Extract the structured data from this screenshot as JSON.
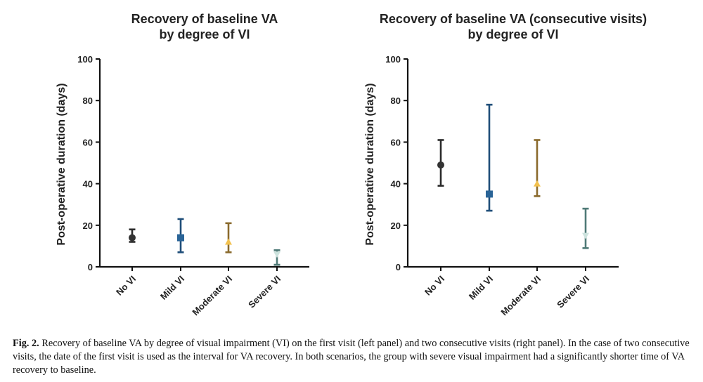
{
  "chart_data": [
    {
      "type": "errorbar",
      "title": [
        "Recovery of baseline VA",
        "by degree of VI"
      ],
      "xlabel": "",
      "ylabel": "Post-operative duration  (days)",
      "ylim": [
        0,
        100
      ],
      "yticks": [
        0,
        20,
        40,
        60,
        80,
        100
      ],
      "grid": false,
      "categories": [
        "No VI",
        "Mild VI",
        "Moderate VI",
        "Severe VI"
      ],
      "series": [
        {
          "name": "No VI",
          "marker": "circle",
          "color": "#2b2b2b",
          "value": 14,
          "low": 12,
          "high": 18
        },
        {
          "name": "Mild VI",
          "marker": "square",
          "color": "#1f4e79",
          "value": 14,
          "low": 7,
          "high": 23
        },
        {
          "name": "Moderate VI",
          "marker": "triangle-up",
          "color": "#8a6a2c",
          "value": 12,
          "low": 7,
          "high": 21
        },
        {
          "name": "Severe VI",
          "marker": "triangle-down",
          "color": "#4f7a77",
          "value": 6,
          "low": 1,
          "high": 8
        }
      ]
    },
    {
      "type": "errorbar",
      "title": [
        "Recovery of baseline VA (consecutive visits)",
        "by degree of VI"
      ],
      "xlabel": "",
      "ylabel": "Post-operative duration  (days)",
      "ylim": [
        0,
        100
      ],
      "yticks": [
        0,
        20,
        40,
        60,
        80,
        100
      ],
      "grid": false,
      "categories": [
        "No VI",
        "Mild VI",
        "Moderate VI",
        "Severe VI"
      ],
      "series": [
        {
          "name": "No VI",
          "marker": "circle",
          "color": "#2b2b2b",
          "value": 49,
          "low": 39,
          "high": 61
        },
        {
          "name": "Mild VI",
          "marker": "square",
          "color": "#1f4e79",
          "value": 35,
          "low": 27,
          "high": 78
        },
        {
          "name": "Moderate VI",
          "marker": "triangle-up",
          "color": "#8a6a2c",
          "value": 40,
          "low": 34,
          "high": 61
        },
        {
          "name": "Severe VI",
          "marker": "triangle-down",
          "color": "#4f7a77",
          "value": 15,
          "low": 9,
          "high": 28
        }
      ]
    }
  ],
  "marker_fills": {
    "circle": "#333333",
    "square": "#2a6497",
    "triangle-up": "#f2c14e",
    "triangle-down": "#cde3de"
  },
  "caption": {
    "label": "Fig. 2.",
    "text": "Recovery of baseline VA by degree of visual impairment (VI) on the first visit (left panel) and two consecutive visits (right panel). In the case of two consecutive visits, the date of the first visit is used as the interval for VA recovery. In both scenarios, the group with severe visual impairment had a significantly shorter time of VA recovery to baseline."
  }
}
